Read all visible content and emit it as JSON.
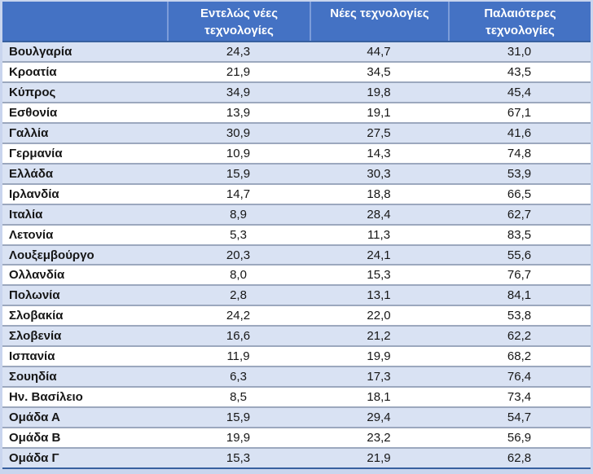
{
  "chart_data": {
    "type": "table",
    "title": "",
    "columns": [
      "Εντελώς νέες τεχνολογίες",
      "Νέες τεχνολογίες",
      "Παλαιότερες τεχνολογίες"
    ],
    "rows": [
      {
        "label": "Βουλγαρία",
        "values": [
          "24,3",
          "44,7",
          "31,0"
        ]
      },
      {
        "label": "Κροατία",
        "values": [
          "21,9",
          "34,5",
          "43,5"
        ]
      },
      {
        "label": "Κύπρος",
        "values": [
          "34,9",
          "19,8",
          "45,4"
        ]
      },
      {
        "label": "Εσθονία",
        "values": [
          "13,9",
          "19,1",
          "67,1"
        ]
      },
      {
        "label": "Γαλλία",
        "values": [
          "30,9",
          "27,5",
          "41,6"
        ]
      },
      {
        "label": "Γερμανία",
        "values": [
          "10,9",
          "14,3",
          "74,8"
        ]
      },
      {
        "label": "Ελλάδα",
        "values": [
          "15,9",
          "30,3",
          "53,9"
        ]
      },
      {
        "label": "Ιρλανδία",
        "values": [
          "14,7",
          "18,8",
          "66,5"
        ]
      },
      {
        "label": "Ιταλία",
        "values": [
          "8,9",
          "28,4",
          "62,7"
        ]
      },
      {
        "label": "Λετονία",
        "values": [
          "5,3",
          "11,3",
          "83,5"
        ]
      },
      {
        "label": "Λουξεμβούργο",
        "values": [
          "20,3",
          "24,1",
          "55,6"
        ]
      },
      {
        "label": "Ολλανδία",
        "values": [
          "8,0",
          "15,3",
          "76,7"
        ]
      },
      {
        "label": "Πολωνία",
        "values": [
          "2,8",
          "13,1",
          "84,1"
        ]
      },
      {
        "label": "Σλοβακία",
        "values": [
          "24,2",
          "22,0",
          "53,8"
        ]
      },
      {
        "label": "Σλοβενία",
        "values": [
          "16,6",
          "21,2",
          "62,2"
        ]
      },
      {
        "label": "Ισπανία",
        "values": [
          "11,9",
          "19,9",
          "68,2"
        ]
      },
      {
        "label": "Σουηδία",
        "values": [
          "6,3",
          "17,3",
          "76,4"
        ]
      },
      {
        "label": "Ην. Βασίλειο",
        "values": [
          "8,5",
          "18,1",
          "73,4"
        ]
      },
      {
        "label": "Ομάδα Α",
        "values": [
          "15,9",
          "29,4",
          "54,7"
        ]
      },
      {
        "label": "Ομάδα Β",
        "values": [
          "19,9",
          "23,2",
          "56,9"
        ]
      },
      {
        "label": "Ομάδα Γ",
        "values": [
          "15,3",
          "21,9",
          "62,8"
        ]
      }
    ]
  },
  "colors": {
    "header_bg": "#4472c4",
    "header_text": "#ffffff",
    "header_divider": "#7c9cd9",
    "row_alt_bg": "#d9e2f3",
    "row_bg": "#ffffff",
    "row_border": "#9ca8be",
    "outer_frame": "#c9d5ee",
    "dark_rule": "#38609f",
    "body_text": "#161616"
  }
}
